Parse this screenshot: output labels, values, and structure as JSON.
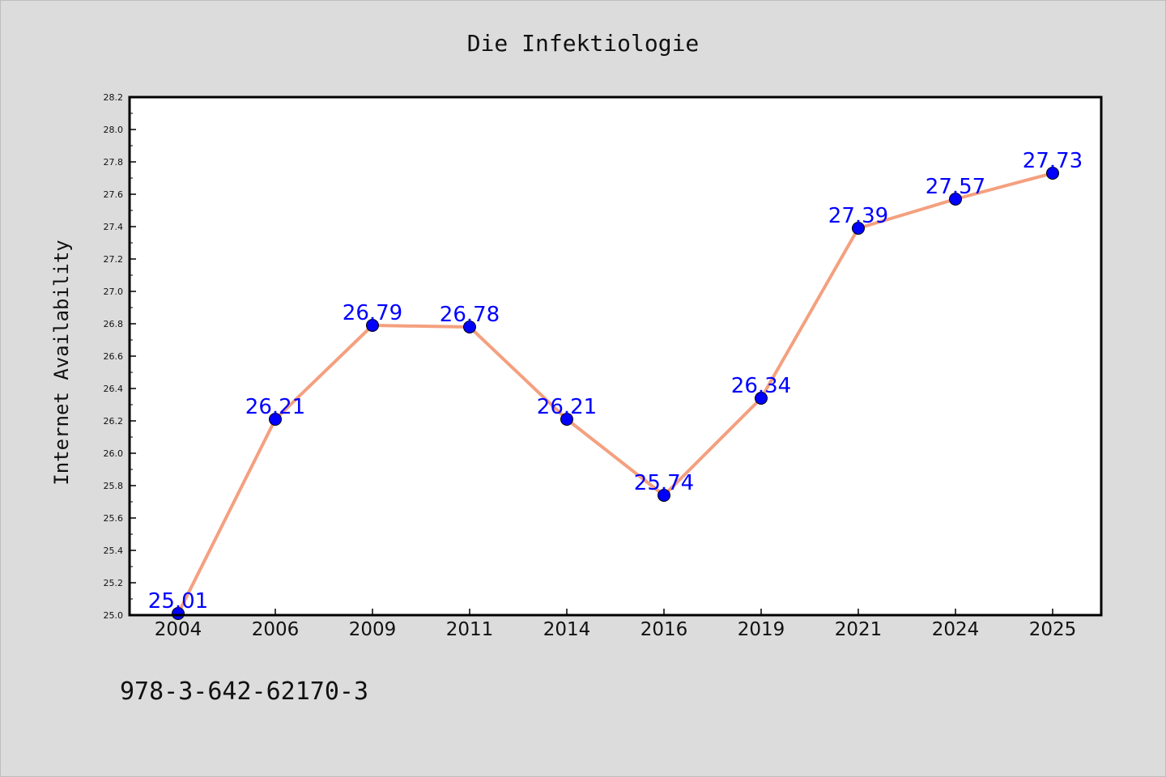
{
  "chart_data": {
    "type": "line",
    "title": "Die Infektiologie",
    "xlabel": "",
    "ylabel": "Internet Availability",
    "categories": [
      "2004",
      "2006",
      "2009",
      "2011",
      "2014",
      "2016",
      "2019",
      "2021",
      "2024",
      "2025"
    ],
    "series": [
      {
        "values": [
          25.01,
          26.21,
          26.79,
          26.78,
          26.21,
          25.74,
          26.34,
          27.39,
          27.57,
          27.73
        ],
        "line_color": "#f4a07f",
        "marker_color": "#0000ff"
      }
    ],
    "data_labels": [
      "25.01",
      "26.21",
      "26.79",
      "26.78",
      "26.21",
      "25.74",
      "26.34",
      "27.39",
      "27.57",
      "27.73"
    ],
    "ylim": [
      25.0,
      28.2
    ],
    "yticks": [
      "25.0",
      "25.2",
      "25.4",
      "25.6",
      "25.8",
      "26.0",
      "26.2",
      "26.4",
      "26.6",
      "26.8",
      "27.0",
      "27.2",
      "27.4",
      "27.6",
      "27.8",
      "28.0",
      "28.2"
    ],
    "grid": false,
    "legend": "none",
    "data_label_color": "#0000ff",
    "background_color": "#dcdcdc",
    "plot_background": "#ffffff"
  },
  "footer": {
    "isbn": "978-3-642-62170-3"
  }
}
